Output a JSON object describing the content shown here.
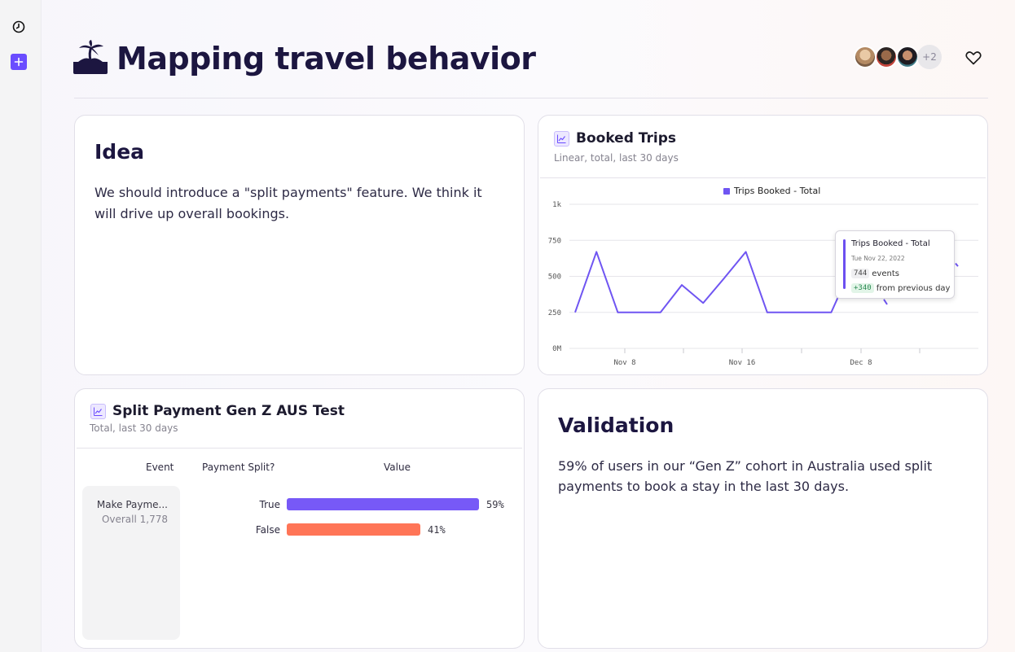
{
  "page": {
    "title": "Mapping travel behavior",
    "title_icon": "desert-island-icon",
    "collaborators_more": "+2"
  },
  "rail": {
    "history_icon": "clock-icon",
    "add_icon": "plus-icon",
    "accent_color": "#6a4cff"
  },
  "idea": {
    "title": "Idea",
    "body": "We should introduce a \"split payments\" feature. We think it will drive up overall bookings."
  },
  "booked_trips": {
    "title": "Booked Trips",
    "subtitle": "Linear, total, last 30 days",
    "legend": "Trips Booked - Total",
    "tooltip": {
      "series": "Trips Booked - Total",
      "date": "Tue Nov 22, 2022",
      "value": "744",
      "value_unit": "events",
      "change": "+340",
      "change_label": "from previous day"
    },
    "chart_data": {
      "type": "line",
      "series": [
        {
          "name": "Trips Booked - Total",
          "color": "#6f55f2",
          "x": [
            "Nov 1",
            "Nov 3",
            "Nov 5",
            "Nov 7",
            "Nov 9",
            "Nov 11",
            "Nov 13",
            "Nov 15",
            "Nov 17",
            "Nov 19",
            "Nov 21",
            "Nov 23",
            "Nov 25",
            "Nov 27",
            "Nov 29"
          ],
          "values": [
            250,
            670,
            250,
            250,
            250,
            440,
            315,
            490,
            670,
            250,
            250,
            250,
            250,
            580,
            520
          ]
        }
      ],
      "y_ticks": [
        "0M",
        "250",
        "500",
        "750",
        "1k"
      ],
      "x_ticks": [
        "Nov 8",
        "Nov 16",
        "Dec 8"
      ],
      "ylim": [
        0,
        1000
      ],
      "grid": true,
      "legend": "top-center"
    }
  },
  "split_payment": {
    "title": "Split Payment Gen Z AUS Test",
    "subtitle": "Total, last 30 days",
    "headers": {
      "event": "Event",
      "split": "Payment Split?",
      "value": "Value"
    },
    "event_name": "Make Payme...",
    "event_overall": "Overall 1,778",
    "chart_data": {
      "type": "bar",
      "categories": [
        "True",
        "False"
      ],
      "values": [
        59,
        41
      ],
      "labels": [
        "59%",
        "41%"
      ],
      "colors": [
        "#7759f7",
        "#ff7557"
      ]
    }
  },
  "validation": {
    "title": "Validation",
    "body": "59% of users in our “Gen Z” cohort in Australia used split payments to book a stay in the last 30 days."
  }
}
